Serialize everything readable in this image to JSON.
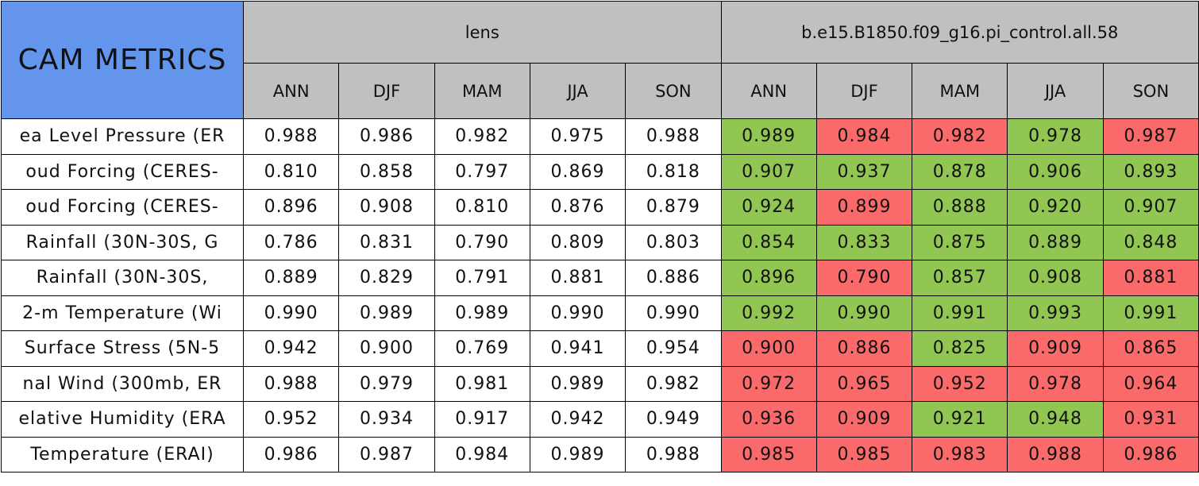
{
  "table": {
    "corner": "CAM METRICS",
    "groups": [
      "lens",
      "b.e15.B1850.f09_g16.pi_control.all.58"
    ],
    "seasons": [
      "ANN",
      "DJF",
      "MAM",
      "JJA",
      "SON",
      "ANN",
      "DJF",
      "MAM",
      "JJA",
      "SON"
    ],
    "rows": [
      {
        "label": "ea Level Pressure (ER",
        "cells": [
          "0.988",
          "0.986",
          "0.982",
          "0.975",
          "0.988",
          "0.989",
          "0.984",
          "0.982",
          "0.978",
          "0.987"
        ],
        "colors": [
          "G",
          "R",
          "R",
          "G",
          "R"
        ]
      },
      {
        "label": "oud Forcing (CERES-",
        "cells": [
          "0.810",
          "0.858",
          "0.797",
          "0.869",
          "0.818",
          "0.907",
          "0.937",
          "0.878",
          "0.906",
          "0.893"
        ],
        "colors": [
          "G",
          "G",
          "G",
          "G",
          "G"
        ]
      },
      {
        "label": "oud Forcing (CERES-",
        "cells": [
          "0.896",
          "0.908",
          "0.810",
          "0.876",
          "0.879",
          "0.924",
          "0.899",
          "0.888",
          "0.920",
          "0.907"
        ],
        "colors": [
          "G",
          "R",
          "G",
          "G",
          "G"
        ]
      },
      {
        "label": "Rainfall (30N-30S, G",
        "cells": [
          "0.786",
          "0.831",
          "0.790",
          "0.809",
          "0.803",
          "0.854",
          "0.833",
          "0.875",
          "0.889",
          "0.848"
        ],
        "colors": [
          "G",
          "G",
          "G",
          "G",
          "G"
        ]
      },
      {
        "label": "Rainfall (30N-30S,",
        "cells": [
          "0.889",
          "0.829",
          "0.791",
          "0.881",
          "0.886",
          "0.896",
          "0.790",
          "0.857",
          "0.908",
          "0.881"
        ],
        "colors": [
          "G",
          "R",
          "G",
          "G",
          "R"
        ]
      },
      {
        "label": "2-m Temperature (Wi",
        "cells": [
          "0.990",
          "0.989",
          "0.989",
          "0.990",
          "0.990",
          "0.992",
          "0.990",
          "0.991",
          "0.993",
          "0.991"
        ],
        "colors": [
          "G",
          "G",
          "G",
          "G",
          "G"
        ]
      },
      {
        "label": "Surface Stress (5N-5",
        "cells": [
          "0.942",
          "0.900",
          "0.769",
          "0.941",
          "0.954",
          "0.900",
          "0.886",
          "0.825",
          "0.909",
          "0.865"
        ],
        "colors": [
          "R",
          "R",
          "G",
          "R",
          "R"
        ]
      },
      {
        "label": "nal Wind (300mb, ER",
        "cells": [
          "0.988",
          "0.979",
          "0.981",
          "0.989",
          "0.982",
          "0.972",
          "0.965",
          "0.952",
          "0.978",
          "0.964"
        ],
        "colors": [
          "R",
          "R",
          "R",
          "R",
          "R"
        ]
      },
      {
        "label": "elative Humidity (ERA",
        "cells": [
          "0.952",
          "0.934",
          "0.917",
          "0.942",
          "0.949",
          "0.936",
          "0.909",
          "0.921",
          "0.948",
          "0.931"
        ],
        "colors": [
          "R",
          "R",
          "G",
          "G",
          "R"
        ]
      },
      {
        "label": "Temperature (ERAI)",
        "cells": [
          "0.986",
          "0.987",
          "0.984",
          "0.989",
          "0.988",
          "0.985",
          "0.985",
          "0.983",
          "0.988",
          "0.986"
        ],
        "colors": [
          "R",
          "R",
          "R",
          "R",
          "R"
        ]
      }
    ],
    "palette": {
      "G": "#92c653",
      "R": "#fb6a6a"
    }
  }
}
